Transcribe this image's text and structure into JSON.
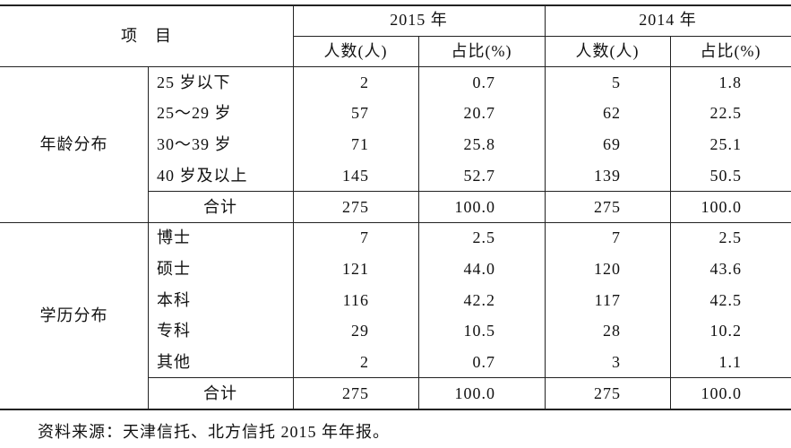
{
  "header": {
    "item": "项　目",
    "groups": [
      "2015 年",
      "2014 年"
    ],
    "columns": [
      "人数(人)",
      "占比(%)",
      "人数(人)",
      "占比(%)"
    ]
  },
  "sections": [
    {
      "label": "年龄分布",
      "rows": [
        {
          "label": "25 岁以下",
          "cells": [
            "2",
            "0.7",
            "5",
            "1.8"
          ]
        },
        {
          "label": "25～29 岁",
          "cells": [
            "57",
            "20.7",
            "62",
            "22.5"
          ]
        },
        {
          "label": "30～39 岁",
          "cells": [
            "71",
            "25.8",
            "69",
            "25.1"
          ]
        },
        {
          "label": "40 岁及以上",
          "cells": [
            "145",
            "52.7",
            "139",
            "50.5"
          ]
        }
      ],
      "total": {
        "label": "合计",
        "cells": [
          "275",
          "100.0",
          "275",
          "100.0"
        ]
      }
    },
    {
      "label": "学历分布",
      "rows": [
        {
          "label": "博士",
          "cells": [
            "7",
            "2.5",
            "7",
            "2.5"
          ]
        },
        {
          "label": "硕士",
          "cells": [
            "121",
            "44.0",
            "120",
            "43.6"
          ]
        },
        {
          "label": "本科",
          "cells": [
            "116",
            "42.2",
            "117",
            "42.5"
          ]
        },
        {
          "label": "专科",
          "cells": [
            "29",
            "10.5",
            "28",
            "10.2"
          ]
        },
        {
          "label": "其他",
          "cells": [
            "2",
            "0.7",
            "3",
            "1.1"
          ]
        }
      ],
      "total": {
        "label": "合计",
        "cells": [
          "275",
          "100.0",
          "275",
          "100.0"
        ]
      }
    }
  ],
  "note": "资料来源：天津信托、北方信托 2015 年年报。"
}
